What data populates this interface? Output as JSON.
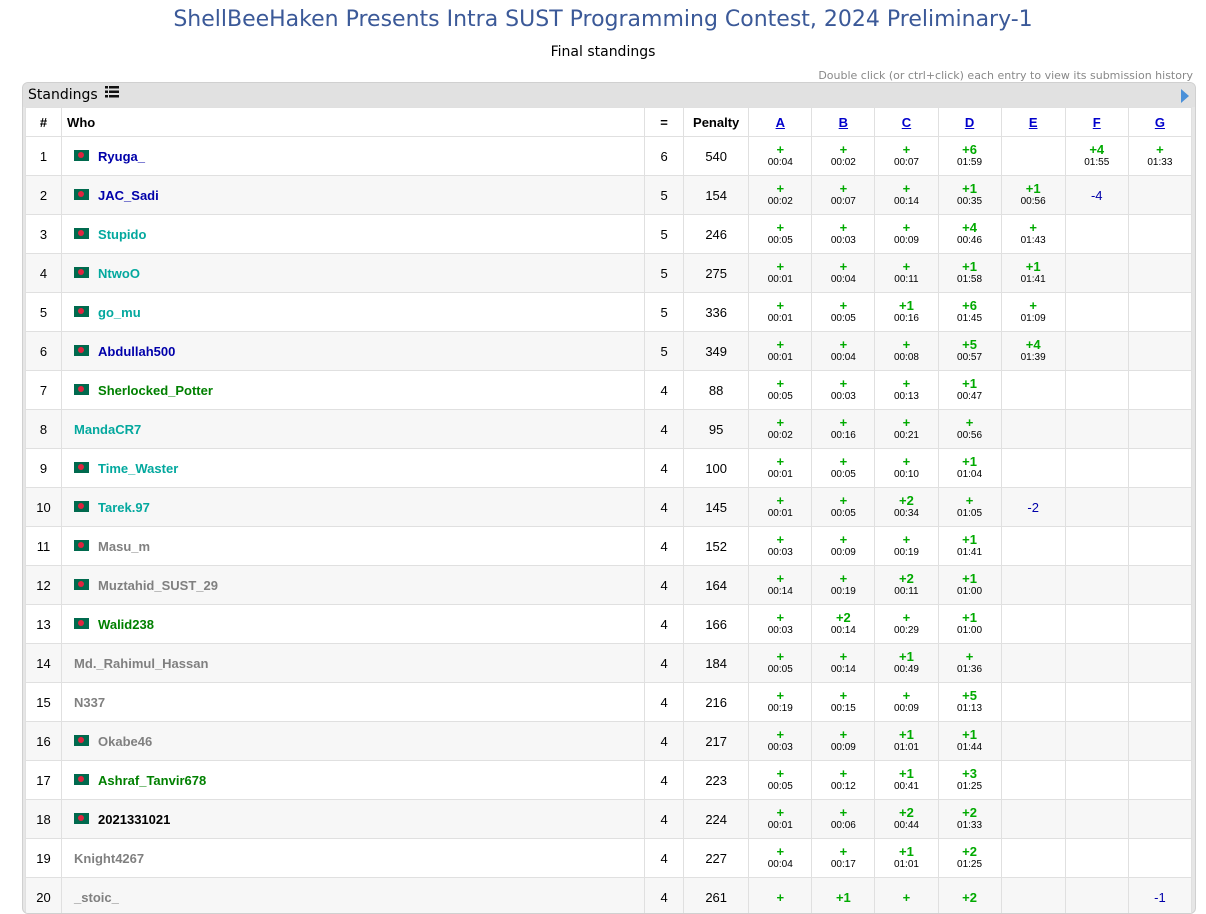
{
  "title": "ShellBeeHaken Presents Intra SUST Programming Contest, 2024 Preliminary-1",
  "subtitle": "Final standings",
  "hint": "Double click (or ctrl+click) each entry to view its submission history",
  "box_label": "Standings",
  "columns": {
    "rank": "#",
    "who": "Who",
    "solved": "=",
    "penalty": "Penalty"
  },
  "problems": [
    "A",
    "B",
    "C",
    "D",
    "E",
    "F",
    "G"
  ],
  "rows": [
    {
      "rank": "1",
      "name": "Ryuga_",
      "flag": true,
      "color": "blue",
      "solved": "6",
      "penalty": "540",
      "cells": [
        [
          "+",
          "00:04"
        ],
        [
          "+",
          "00:02"
        ],
        [
          "+",
          "00:07"
        ],
        [
          "+6",
          "01:59"
        ],
        null,
        [
          "+4",
          "01:55"
        ],
        [
          "+",
          "01:33"
        ]
      ]
    },
    {
      "rank": "2",
      "name": "JAC_Sadi",
      "flag": true,
      "color": "blue",
      "solved": "5",
      "penalty": "154",
      "cells": [
        [
          "+",
          "00:02"
        ],
        [
          "+",
          "00:07"
        ],
        [
          "+",
          "00:14"
        ],
        [
          "+1",
          "00:35"
        ],
        [
          "+1",
          "00:56"
        ],
        [
          "-4"
        ],
        null
      ]
    },
    {
      "rank": "3",
      "name": "Stupido",
      "flag": true,
      "color": "cyan",
      "solved": "5",
      "penalty": "246",
      "cells": [
        [
          "+",
          "00:05"
        ],
        [
          "+",
          "00:03"
        ],
        [
          "+",
          "00:09"
        ],
        [
          "+4",
          "00:46"
        ],
        [
          "+",
          "01:43"
        ],
        null,
        null
      ]
    },
    {
      "rank": "4",
      "name": "NtwoO",
      "flag": true,
      "color": "cyan",
      "solved": "5",
      "penalty": "275",
      "cells": [
        [
          "+",
          "00:01"
        ],
        [
          "+",
          "00:04"
        ],
        [
          "+",
          "00:11"
        ],
        [
          "+1",
          "01:58"
        ],
        [
          "+1",
          "01:41"
        ],
        null,
        null
      ]
    },
    {
      "rank": "5",
      "name": "go_mu",
      "flag": true,
      "color": "cyan",
      "solved": "5",
      "penalty": "336",
      "cells": [
        [
          "+",
          "00:01"
        ],
        [
          "+",
          "00:05"
        ],
        [
          "+1",
          "00:16"
        ],
        [
          "+6",
          "01:45"
        ],
        [
          "+",
          "01:09"
        ],
        null,
        null
      ]
    },
    {
      "rank": "6",
      "name": "Abdullah500",
      "flag": true,
      "color": "blue",
      "solved": "5",
      "penalty": "349",
      "cells": [
        [
          "+",
          "00:01"
        ],
        [
          "+",
          "00:04"
        ],
        [
          "+",
          "00:08"
        ],
        [
          "+5",
          "00:57"
        ],
        [
          "+4",
          "01:39"
        ],
        null,
        null
      ]
    },
    {
      "rank": "7",
      "name": "Sherlocked_Potter",
      "flag": true,
      "color": "green",
      "solved": "4",
      "penalty": "88",
      "cells": [
        [
          "+",
          "00:05"
        ],
        [
          "+",
          "00:03"
        ],
        [
          "+",
          "00:13"
        ],
        [
          "+1",
          "00:47"
        ],
        null,
        null,
        null
      ]
    },
    {
      "rank": "8",
      "name": "MandaCR7",
      "flag": false,
      "color": "cyan",
      "solved": "4",
      "penalty": "95",
      "cells": [
        [
          "+",
          "00:02"
        ],
        [
          "+",
          "00:16"
        ],
        [
          "+",
          "00:21"
        ],
        [
          "+",
          "00:56"
        ],
        null,
        null,
        null
      ]
    },
    {
      "rank": "9",
      "name": "Time_Waster",
      "flag": true,
      "color": "cyan",
      "solved": "4",
      "penalty": "100",
      "cells": [
        [
          "+",
          "00:01"
        ],
        [
          "+",
          "00:05"
        ],
        [
          "+",
          "00:10"
        ],
        [
          "+1",
          "01:04"
        ],
        null,
        null,
        null
      ]
    },
    {
      "rank": "10",
      "name": "Tarek.97",
      "flag": true,
      "color": "cyan",
      "solved": "4",
      "penalty": "145",
      "cells": [
        [
          "+",
          "00:01"
        ],
        [
          "+",
          "00:05"
        ],
        [
          "+2",
          "00:34"
        ],
        [
          "+",
          "01:05"
        ],
        [
          "-2"
        ],
        null,
        null
      ]
    },
    {
      "rank": "11",
      "name": "Masu_m",
      "flag": true,
      "color": "gray",
      "solved": "4",
      "penalty": "152",
      "cells": [
        [
          "+",
          "00:03"
        ],
        [
          "+",
          "00:09"
        ],
        [
          "+",
          "00:19"
        ],
        [
          "+1",
          "01:41"
        ],
        null,
        null,
        null
      ]
    },
    {
      "rank": "12",
      "name": "Muztahid_SUST_29",
      "flag": true,
      "color": "gray",
      "solved": "4",
      "penalty": "164",
      "cells": [
        [
          "+",
          "00:14"
        ],
        [
          "+",
          "00:19"
        ],
        [
          "+2",
          "00:11"
        ],
        [
          "+1",
          "01:00"
        ],
        null,
        null,
        null
      ]
    },
    {
      "rank": "13",
      "name": "Walid238",
      "flag": true,
      "color": "green",
      "solved": "4",
      "penalty": "166",
      "cells": [
        [
          "+",
          "00:03"
        ],
        [
          "+2",
          "00:14"
        ],
        [
          "+",
          "00:29"
        ],
        [
          "+1",
          "01:00"
        ],
        null,
        null,
        null
      ]
    },
    {
      "rank": "14",
      "name": "Md._Rahimul_Hassan",
      "flag": false,
      "color": "gray",
      "solved": "4",
      "penalty": "184",
      "cells": [
        [
          "+",
          "00:05"
        ],
        [
          "+",
          "00:14"
        ],
        [
          "+1",
          "00:49"
        ],
        [
          "+",
          "01:36"
        ],
        null,
        null,
        null
      ]
    },
    {
      "rank": "15",
      "name": "N337",
      "flag": false,
      "color": "gray",
      "solved": "4",
      "penalty": "216",
      "cells": [
        [
          "+",
          "00:19"
        ],
        [
          "+",
          "00:15"
        ],
        [
          "+",
          "00:09"
        ],
        [
          "+5",
          "01:13"
        ],
        null,
        null,
        null
      ]
    },
    {
      "rank": "16",
      "name": "Okabe46",
      "flag": true,
      "color": "gray",
      "solved": "4",
      "penalty": "217",
      "cells": [
        [
          "+",
          "00:03"
        ],
        [
          "+",
          "00:09"
        ],
        [
          "+1",
          "01:01"
        ],
        [
          "+1",
          "01:44"
        ],
        null,
        null,
        null
      ]
    },
    {
      "rank": "17",
      "name": "Ashraf_Tanvir678",
      "flag": true,
      "color": "green",
      "solved": "4",
      "penalty": "223",
      "cells": [
        [
          "+",
          "00:05"
        ],
        [
          "+",
          "00:12"
        ],
        [
          "+1",
          "00:41"
        ],
        [
          "+3",
          "01:25"
        ],
        null,
        null,
        null
      ]
    },
    {
      "rank": "18",
      "name": "2021331021",
      "flag": true,
      "color": "black",
      "solved": "4",
      "penalty": "224",
      "cells": [
        [
          "+",
          "00:01"
        ],
        [
          "+",
          "00:06"
        ],
        [
          "+2",
          "00:44"
        ],
        [
          "+2",
          "01:33"
        ],
        null,
        null,
        null
      ]
    },
    {
      "rank": "19",
      "name": "Knight4267",
      "flag": false,
      "color": "gray",
      "solved": "4",
      "penalty": "227",
      "cells": [
        [
          "+",
          "00:04"
        ],
        [
          "+",
          "00:17"
        ],
        [
          "+1",
          "01:01"
        ],
        [
          "+2",
          "01:25"
        ],
        null,
        null,
        null
      ]
    },
    {
      "rank": "20",
      "name": "_stoic_",
      "flag": false,
      "color": "gray",
      "solved": "4",
      "penalty": "261",
      "cells": [
        [
          "+",
          ""
        ],
        [
          "+1",
          ""
        ],
        [
          "+",
          ""
        ],
        [
          "+2",
          ""
        ],
        null,
        null,
        [
          "-1"
        ]
      ]
    }
  ],
  "colors": {
    "title": "#3b5998",
    "accepted": "#00aa00",
    "rejected": "#0000aa",
    "header_bg": "#e1e1e1"
  },
  "icons": {
    "list": "list-icon",
    "collapse": "arrow-right-icon"
  }
}
